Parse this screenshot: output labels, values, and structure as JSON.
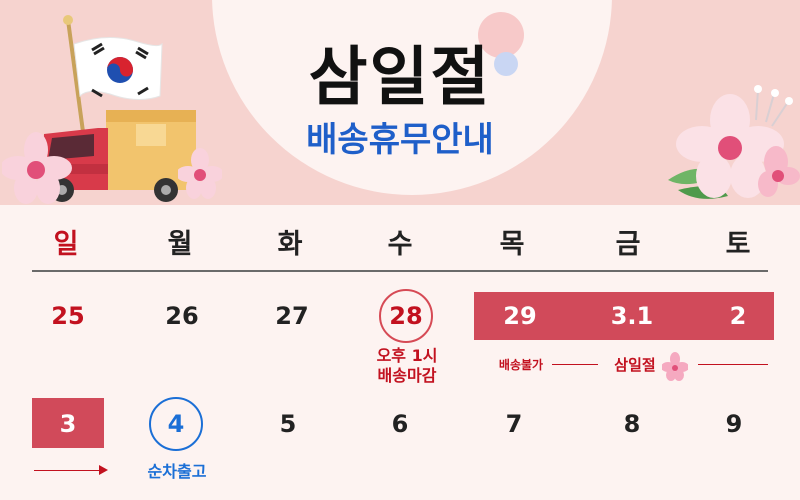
{
  "header": {
    "title": "삼일절",
    "subtitle": "배송휴무안내"
  },
  "weekdays": [
    "일",
    "월",
    "화",
    "수",
    "목",
    "금",
    "토"
  ],
  "week1": [
    "25",
    "26",
    "27",
    "28",
    "29",
    "3.1",
    "2"
  ],
  "week2": [
    "3",
    "4",
    "5",
    "6",
    "7",
    "8",
    "9"
  ],
  "notes": {
    "cutoff_line1": "오후 1시",
    "cutoff_line2": "배송마감",
    "no_delivery": "배송불가",
    "holiday": "삼일절",
    "sequential": "순차출고"
  },
  "colors": {
    "accent_red": "#d14a5a",
    "sunday_red": "#c2111f",
    "blue": "#1b6fd6",
    "band": "#f6d3cf"
  },
  "icons": [
    "korean-flag-icon",
    "delivery-truck-icon",
    "flower-icon"
  ]
}
